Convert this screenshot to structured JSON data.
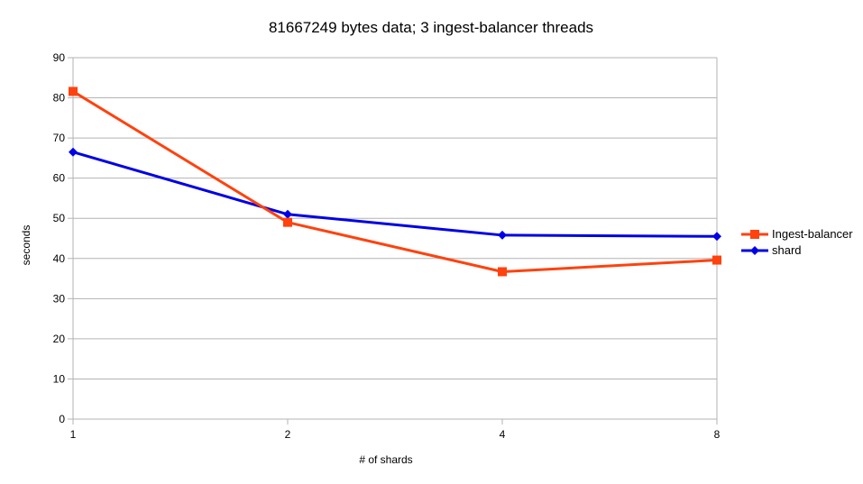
{
  "chart_data": {
    "type": "line",
    "title": "81667249 bytes data; 3 ingest-balancer threads",
    "xlabel": "# of shards",
    "ylabel": "seconds",
    "categories": [
      "1",
      "2",
      "4",
      "8"
    ],
    "ylim": [
      0,
      90
    ],
    "yticks": [
      "0",
      "10",
      "20",
      "30",
      "40",
      "50",
      "60",
      "70",
      "80",
      "90"
    ],
    "grid": true,
    "legend_position": "right",
    "series": [
      {
        "name": "Ingest-balancer",
        "values": [
          81.6,
          49.0,
          36.7,
          39.6
        ],
        "color": "#ff420e",
        "marker": "square"
      },
      {
        "name": "shard",
        "values": [
          66.5,
          51.0,
          45.8,
          45.5
        ],
        "color": "#0000e6",
        "marker": "diamond"
      }
    ]
  }
}
